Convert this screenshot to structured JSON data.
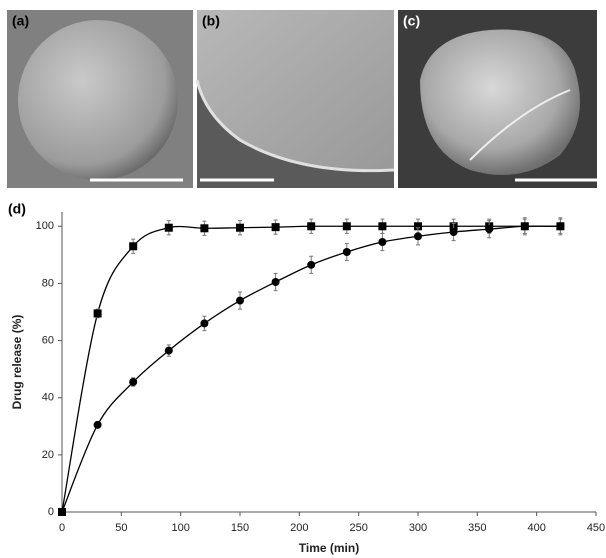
{
  "panels": [
    {
      "label": "(a)"
    },
    {
      "label": "(b)"
    },
    {
      "label": "(c)"
    },
    {
      "label": "(d)"
    }
  ],
  "chart_data": {
    "type": "line",
    "x_label": "Time (min)",
    "y_label": "Drug release (%)",
    "x": [
      0,
      30,
      60,
      90,
      120,
      150,
      180,
      210,
      240,
      270,
      300,
      330,
      360,
      390,
      420
    ],
    "series": [
      {
        "marker": "square",
        "color": "#000000",
        "values": [
          0,
          69.5,
          93,
          99.5,
          99.3,
          99.5,
          99.7,
          100,
          100,
          100,
          100,
          100,
          100,
          100,
          100
        ],
        "errors": [
          0,
          1.5,
          2.5,
          2.5,
          2.5,
          2.5,
          2.5,
          2.5,
          2.5,
          2.5,
          2.5,
          2.5,
          2.5,
          2.5,
          2.5
        ]
      },
      {
        "marker": "circle",
        "color": "#000000",
        "values": [
          0,
          30.5,
          45.5,
          56.5,
          66,
          74,
          80.5,
          86.5,
          91,
          94.5,
          96.5,
          98,
          99,
          100,
          100
        ],
        "errors": [
          0,
          1,
          1.5,
          2,
          2.5,
          3,
          3,
          3,
          3,
          3,
          3,
          3,
          3,
          3,
          3
        ]
      }
    ],
    "xlim": [
      0,
      450
    ],
    "xticks": [
      0,
      50,
      100,
      150,
      200,
      250,
      300,
      350,
      400,
      450
    ],
    "ylim": [
      0,
      105
    ],
    "yticks": [
      0,
      20,
      40,
      60,
      80,
      100
    ],
    "error_color": "#777777"
  }
}
